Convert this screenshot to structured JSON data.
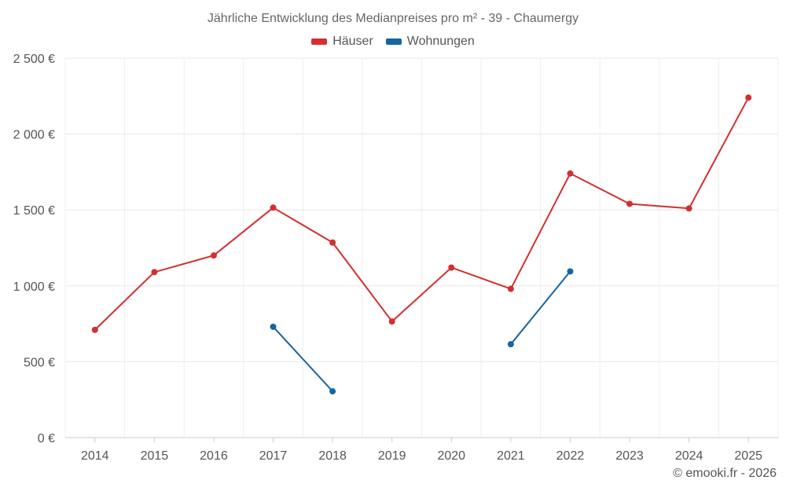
{
  "chart_data": {
    "type": "line",
    "title": "Jährliche Entwicklung des Medianpreises pro m² - 39 - Chaumergy",
    "xlabel": "",
    "ylabel": "",
    "ylim": [
      0,
      2500
    ],
    "y_ticks": [
      0,
      500,
      1000,
      1500,
      2000,
      2500
    ],
    "y_tick_labels": [
      "0 €",
      "500 €",
      "1 000 €",
      "1 500 €",
      "2 000 €",
      "2 500 €"
    ],
    "categories": [
      "2014",
      "2015",
      "2016",
      "2017",
      "2018",
      "2019",
      "2020",
      "2021",
      "2022",
      "2023",
      "2024",
      "2025"
    ],
    "grid": true,
    "legend_position": "top-center",
    "series": [
      {
        "name": "Häuser",
        "color": "#d32f2f",
        "values": [
          710,
          1090,
          1200,
          1515,
          1285,
          765,
          1120,
          980,
          1740,
          1540,
          1510,
          2240
        ]
      },
      {
        "name": "Wohnungen",
        "color": "#1565a0",
        "values": [
          null,
          null,
          null,
          730,
          305,
          null,
          null,
          615,
          1095,
          null,
          null,
          null
        ]
      }
    ]
  },
  "credit": "© emooki.fr - 2026"
}
